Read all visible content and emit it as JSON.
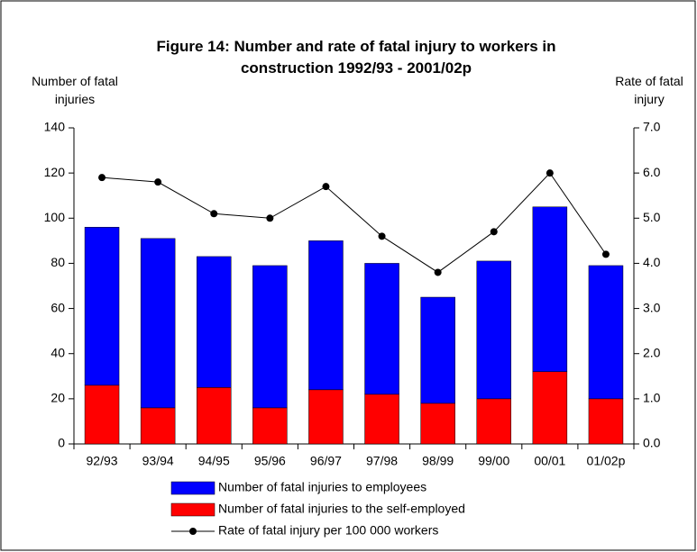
{
  "chart_data": {
    "type": "bar_line",
    "title": "Figure 14:  Number and rate of fatal injury to workers in construction 1992/93 - 2001/02p",
    "y_label": "Number of fatal injuries",
    "y2_label": "Rate of fatal injury",
    "categories": [
      "92/93",
      "93/94",
      "94/95",
      "95/96",
      "96/97",
      "97/98",
      "98/99",
      "99/00",
      "00/01",
      "01/02p"
    ],
    "series": [
      {
        "name": "Number of fatal injuries to employees",
        "color": "#0000ff",
        "type": "bar",
        "values": [
          70,
          75,
          58,
          63,
          66,
          58,
          47,
          61,
          73,
          59
        ]
      },
      {
        "name": "Number of fatal injuries to the self-employed",
        "color": "#ff0000",
        "type": "bar",
        "values": [
          26,
          16,
          25,
          16,
          24,
          22,
          18,
          20,
          32,
          20
        ]
      },
      {
        "name": "Rate of fatal injury per 100 000 workers",
        "color": "#000000",
        "type": "line",
        "axis": "y2",
        "values": [
          5.9,
          5.8,
          5.1,
          5.0,
          5.7,
          4.6,
          3.8,
          4.7,
          6.0,
          4.2
        ]
      }
    ],
    "ylim": [
      0,
      140
    ],
    "yticks": [
      0,
      20,
      40,
      60,
      80,
      100,
      120,
      140
    ],
    "y2lim": [
      0,
      7
    ],
    "y2ticks": [
      {
        "value": 0,
        "label": "0.0"
      },
      {
        "value": 1,
        "label": "1.0"
      },
      {
        "value": 2,
        "label": "2.0"
      },
      {
        "value": 3,
        "label": "3.0"
      },
      {
        "value": 4,
        "label": "4.0"
      },
      {
        "value": 5,
        "label": "5.0"
      },
      {
        "value": 6,
        "label": "6.0"
      },
      {
        "value": 7,
        "label": "7.0"
      }
    ],
    "grid": false,
    "stacked": true
  }
}
